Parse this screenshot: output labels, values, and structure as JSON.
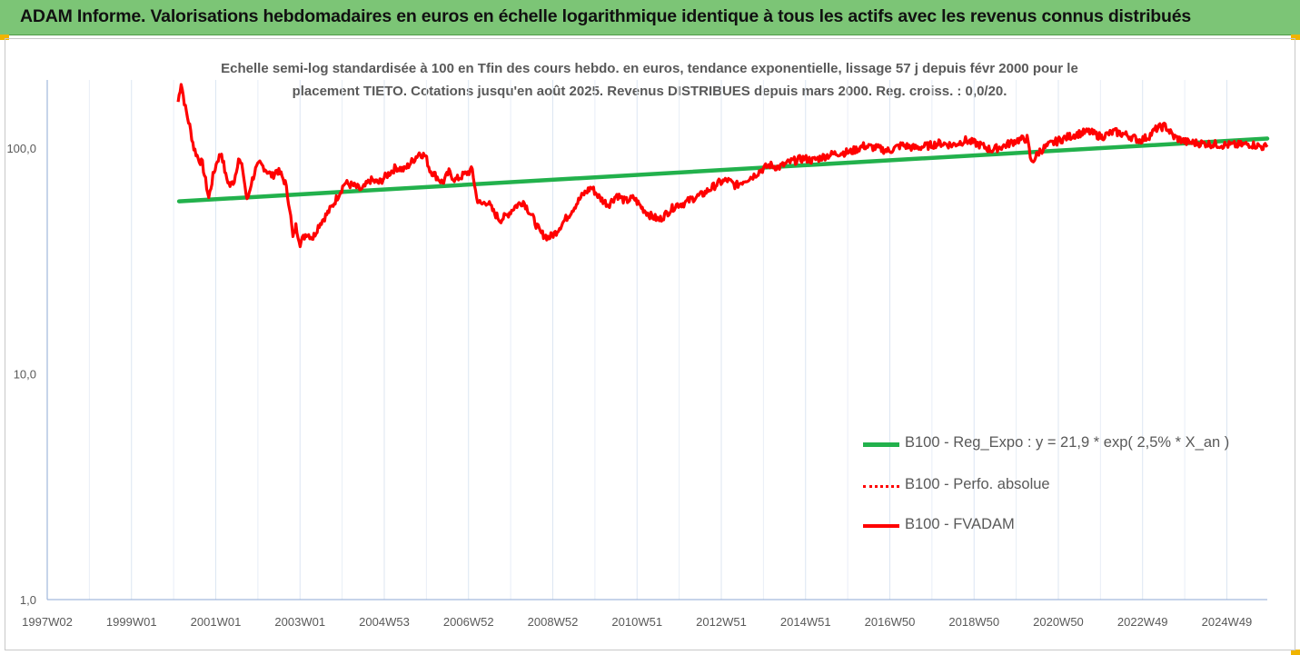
{
  "header": {
    "title": "ADAM Informe. Valorisations hebdomadaires en euros en échelle logarithmique identique à tous les actifs avec les revenus connus distribués"
  },
  "chart_data": {
    "type": "line",
    "title": "Echelle semi-log standardisée à 100 en Tfin des cours hebdo. en euros, tendance exponentielle, lissage 57 j depuis févr 2000 pour le placement TIETO. Cotations jusqu'en août 2025. Revenus DISTRIBUES depuis mars 2000. Reg. croiss. : 0,0/20.",
    "title_lines": [
      "Echelle semi-log standardisée à 100 en Tfin des cours hebdo. en euros, tendance exponentielle, lissage 57 j depuis févr 2000 pour le",
      "placement TIETO. Cotations jusqu'en août 2025. Revenus DISTRIBUES depuis mars 2000. Reg. croiss. : 0,0/20."
    ],
    "y_scale": "log",
    "ylim": [
      1,
      200
    ],
    "y_ticks": [
      {
        "value": 1,
        "label": "1,0"
      },
      {
        "value": 10,
        "label": "10,0"
      },
      {
        "value": 100,
        "label": "100,0"
      }
    ],
    "x_range": [
      1997.0,
      2025.7
    ],
    "x_tick_labels": [
      "1997W02",
      "1999W01",
      "2001W01",
      "2003W01",
      "2004W53",
      "2006W52",
      "2008W52",
      "2010W51",
      "2012W51",
      "2014W51",
      "2016W50",
      "2018W50",
      "2020W50",
      "2022W49",
      "2024W49"
    ],
    "grid": "vertical",
    "legend_position": "bottom-right",
    "series": [
      {
        "name": "B100 - Reg_Expo : y = 21,9 * exp( 2,5% *  X_an )",
        "color": "#22b14c",
        "style": "solid",
        "x": [
          2000.1,
          2025.7
        ],
        "y": [
          58,
          110
        ]
      },
      {
        "name": "B100 - Perfo. absolue",
        "color": "#ff0000",
        "style": "dotted",
        "x": [],
        "y": []
      },
      {
        "name": "B100 - FVADAM",
        "color": "#ff0000",
        "style": "solid",
        "x": [
          2000.08,
          2000.15,
          2000.25,
          2000.35,
          2000.45,
          2000.55,
          2000.65,
          2000.8,
          2000.9,
          2001.0,
          2001.1,
          2001.2,
          2001.3,
          2001.4,
          2001.5,
          2001.6,
          2001.7,
          2001.8,
          2001.9,
          2002.0,
          2002.1,
          2002.2,
          2002.3,
          2002.4,
          2002.5,
          2002.6,
          2002.7,
          2002.78,
          2002.85,
          2002.95,
          2003.1,
          2003.25,
          2003.4,
          2003.55,
          2003.7,
          2003.85,
          2004.0,
          2004.2,
          2004.4,
          2004.6,
          2004.8,
          2005.0,
          2005.2,
          2005.4,
          2005.6,
          2005.75,
          2005.9,
          2006.0,
          2006.15,
          2006.3,
          2006.45,
          2006.6,
          2006.8,
          2007.0,
          2007.1,
          2007.2,
          2007.35,
          2007.5,
          2007.65,
          2007.8,
          2008.0,
          2008.2,
          2008.4,
          2008.6,
          2008.8,
          2008.95,
          2009.1,
          2009.25,
          2009.4,
          2009.6,
          2009.8,
          2010.0,
          2010.2,
          2010.4,
          2010.6,
          2010.8,
          2011.0,
          2011.2,
          2011.4,
          2011.6,
          2011.8,
          2012.0,
          2012.2,
          2012.4,
          2012.6,
          2012.8,
          2013.0,
          2013.2,
          2013.4,
          2013.6,
          2013.8,
          2014.0,
          2014.2,
          2014.5,
          2014.8,
          2015.0,
          2015.3,
          2015.6,
          2015.9,
          2016.2,
          2016.5,
          2016.8,
          2017.1,
          2017.4,
          2017.7,
          2018.0,
          2018.3,
          2018.6,
          2018.9,
          2019.2,
          2019.5,
          2019.8,
          2020.05,
          2020.15,
          2020.35,
          2020.6,
          2020.9,
          2021.2,
          2021.5,
          2021.8,
          2022.1,
          2022.4,
          2022.7,
          2022.9,
          2023.1,
          2023.3,
          2023.5,
          2023.8,
          2024.1,
          2024.4,
          2024.7,
          2025.0,
          2025.3,
          2025.6,
          2025.7
        ],
        "y": [
          160,
          195,
          150,
          125,
          100,
          90,
          85,
          60,
          75,
          88,
          95,
          75,
          68,
          72,
          90,
          80,
          58,
          70,
          80,
          85,
          82,
          78,
          75,
          80,
          76,
          70,
          55,
          40,
          45,
          38,
          42,
          40,
          46,
          50,
          55,
          62,
          70,
          68,
          65,
          72,
          70,
          76,
          82,
          80,
          88,
          95,
          92,
          80,
          75,
          70,
          78,
          72,
          76,
          80,
          60,
          56,
          58,
          52,
          48,
          50,
          55,
          58,
          50,
          42,
          40,
          42,
          46,
          50,
          55,
          62,
          67,
          60,
          56,
          62,
          58,
          60,
          54,
          50,
          48,
          52,
          56,
          57,
          60,
          62,
          66,
          70,
          72,
          68,
          72,
          75,
          80,
          84,
          82,
          87,
          90,
          88,
          92,
          95,
          96,
          102,
          100,
          97,
          103,
          100,
          102,
          105,
          103,
          108,
          104,
          98,
          102,
          108,
          110,
          86,
          97,
          104,
          110,
          115,
          118,
          112,
          118,
          114,
          108,
          112,
          122,
          125,
          112,
          106,
          105,
          104,
          103,
          103,
          104,
          101,
          101
        ]
      }
    ]
  }
}
